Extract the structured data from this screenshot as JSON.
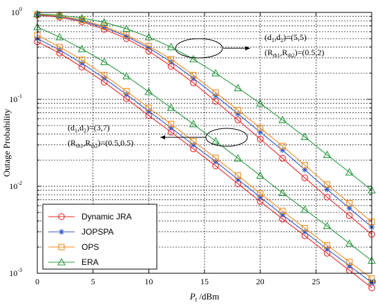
{
  "chart_data": {
    "type": "line",
    "xlabel": "Pt /dBm",
    "ylabel": "Outage Probability",
    "xlim": [
      0,
      30
    ],
    "ylim": [
      0.001,
      1
    ],
    "yscale": "log",
    "grid": true,
    "legend_position": "bottom-left",
    "x_ticks": [
      "0",
      "5",
      "10",
      "15",
      "20",
      "25",
      "30"
    ],
    "y_ticks": [
      {
        "base": "10",
        "exp": "-3",
        "value": 0.001
      },
      {
        "base": "10",
        "exp": "-2",
        "value": 0.01
      },
      {
        "base": "10",
        "exp": "-1",
        "value": 0.1
      },
      {
        "base": "10",
        "exp": "0",
        "value": 1
      }
    ],
    "x": [
      0,
      2,
      4,
      6,
      8,
      10,
      12,
      14,
      16,
      18,
      20,
      22,
      24,
      26,
      28,
      30
    ],
    "series": [
      {
        "name": "Dynamic JRA",
        "marker": "circle",
        "color": "#e8262a",
        "groups": [
          [
            0.93,
            0.88,
            0.78,
            0.64,
            0.5,
            0.36,
            0.24,
            0.155,
            0.095,
            0.058,
            0.035,
            0.021,
            0.0125,
            0.0075,
            0.0046,
            0.0028
          ],
          [
            0.46,
            0.34,
            0.235,
            0.158,
            0.102,
            0.065,
            0.042,
            0.027,
            0.0172,
            0.0107,
            0.0067,
            0.0042,
            0.0027,
            0.0017,
            0.00108,
            0.00068
          ]
        ]
      },
      {
        "name": "JOPSPA",
        "marker": "star",
        "color": "#2f56c6",
        "groups": [
          [
            0.94,
            0.9,
            0.8,
            0.67,
            0.53,
            0.39,
            0.27,
            0.175,
            0.11,
            0.068,
            0.042,
            0.026,
            0.0155,
            0.0092,
            0.0056,
            0.0034
          ],
          [
            0.5,
            0.37,
            0.26,
            0.175,
            0.114,
            0.073,
            0.047,
            0.03,
            0.0193,
            0.012,
            0.0075,
            0.0047,
            0.003,
            0.0019,
            0.00122,
            0.00078
          ]
        ]
      },
      {
        "name": "OPS",
        "marker": "square",
        "color": "#f08a1c",
        "groups": [
          [
            0.95,
            0.91,
            0.82,
            0.69,
            0.55,
            0.41,
            0.29,
            0.19,
            0.12,
            0.075,
            0.047,
            0.029,
            0.0175,
            0.0105,
            0.0064,
            0.0039
          ],
          [
            0.55,
            0.4,
            0.285,
            0.19,
            0.124,
            0.08,
            0.052,
            0.033,
            0.0212,
            0.0133,
            0.0083,
            0.0052,
            0.0033,
            0.0021,
            0.00135,
            0.00087
          ]
        ]
      },
      {
        "name": "ERA",
        "marker": "triangle",
        "color": "#2a9a40",
        "groups": [
          [
            0.96,
            0.93,
            0.86,
            0.77,
            0.65,
            0.52,
            0.4,
            0.29,
            0.2,
            0.135,
            0.09,
            0.058,
            0.037,
            0.023,
            0.0145,
            0.009
          ],
          [
            0.68,
            0.52,
            0.38,
            0.27,
            0.185,
            0.122,
            0.08,
            0.052,
            0.033,
            0.021,
            0.0133,
            0.0084,
            0.0054,
            0.0035,
            0.0022,
            0.0014
          ]
        ]
      }
    ],
    "annotations": [
      {
        "line1_pre": "(d",
        "line1_sub1": "1",
        "line1_mid": ",d",
        "line1_sub2": "2",
        "line1_post": ")=(5,5)",
        "line2_pre": "(R",
        "line2_sub1": "th1",
        "line2_mid": ",R",
        "line2_sub2": "th2",
        "line2_post": ")=(0.5,2)"
      },
      {
        "line1_pre": "(d",
        "line1_sub1": "1",
        "line1_mid": ",d",
        "line1_sub2": "2",
        "line1_post": ")=(3,7)",
        "line2_pre": "(R",
        "line2_sub1": "th1",
        "line2_mid": ",R",
        "line2_sub2": "th2",
        "line2_post": ")=(0.5,0.5)"
      }
    ]
  }
}
